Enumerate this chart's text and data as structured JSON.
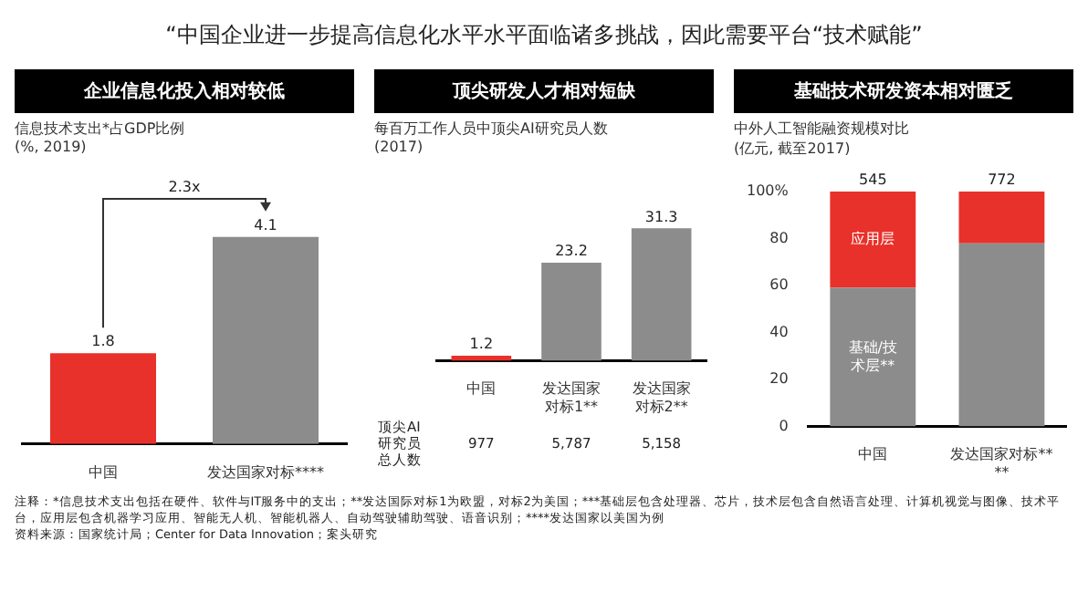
{
  "chart_data": [
    {
      "type": "bar",
      "title": "企业信息化投入相对较低",
      "subtitle": "信息技术支出*占GDP比例\n(%, 2019)",
      "categories": [
        "中国",
        "发达国家对标****"
      ],
      "values": [
        1.8,
        4.1
      ],
      "colors": [
        "#e8312a",
        "#8c8c8c"
      ],
      "data_labels": true,
      "annotations": [
        "“中国企业进一步提高信息化水平水平面临诸多挑战，因此需要平台“技术赋能”",
        "2.3x",
        "注释：*信息技术支出包括在硬件、软件与IT服务中的支出；**发达国际对标1为欧盟，对标2为美国；***基础层包含处理器、芯片，技术层包含自然语言处理、计算机视觉与图像、技术平台，应用层包含机器学习应用、智能无人机、智能机器人、自动驾驶辅助驾驶、语音识别；****发达国家以美国为例",
        "资料来源：国家统计局；Center for Data Innovation；案头研究"
      ]
    },
    {
      "type": "bar",
      "title": "顶尖研发人才相对短缺",
      "subtitle": "每百万工作人员中顶尖AI研究员人数\n(2017)",
      "categories": [
        "中国",
        "发达国家对标1**",
        "发达国家对标2**"
      ],
      "values": [
        1.2,
        23.2,
        31.3
      ],
      "colors": [
        "#e8312a",
        "#8c8c8c",
        "#8c8c8c"
      ],
      "data_labels": true,
      "annotations": [
        "顶尖AI研究员总人数",
        "977",
        "5,787",
        "5,158"
      ]
    },
    {
      "type": "bar",
      "title": "基础技术研发资本相对匮乏",
      "subtitle": "中外人工智能融资规模对比\n(亿元, 截至2017)",
      "categories": [
        "中国",
        "发达国家对标****"
      ],
      "stacked": true,
      "ylim": [
        0,
        100
      ],
      "yticks": [
        0,
        20,
        40,
        60,
        80,
        {
          "value": 100,
          "label": "100%"
        }
      ],
      "series": [
        {
          "name": "基础/技术层**",
          "color": "#8c8c8c",
          "values": [
            59,
            78
          ]
        },
        {
          "name": "应用层",
          "color": "#e8312a",
          "values": [
            41,
            22
          ]
        }
      ],
      "annotations": [
        {
          "text": "545",
          "x": "中国",
          "y": 100
        },
        {
          "text": "772",
          "x": "发达国家对标****",
          "y": 100
        }
      ]
    }
  ]
}
